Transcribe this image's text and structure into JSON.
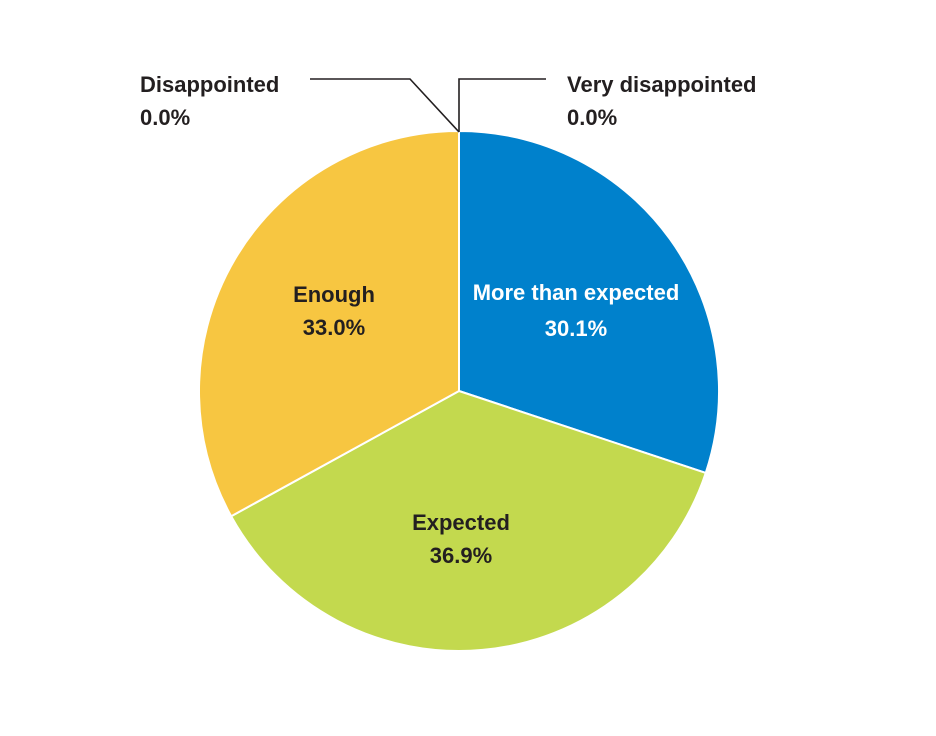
{
  "chart_data": {
    "type": "pie",
    "title": "",
    "start_angle_deg": 0,
    "direction": "clockwise",
    "slices": [
      {
        "name": "More than expected",
        "label": "More than expected",
        "value_label": "30.1%",
        "value": 30.1,
        "color": "#0081cc",
        "text_color": "#ffffff"
      },
      {
        "name": "Expected",
        "label": "Expected",
        "value_label": "36.9%",
        "value": 36.9,
        "color": "#c3d94e",
        "text_color": "#231f20"
      },
      {
        "name": "Enough",
        "label": "Enough",
        "value_label": "33.0%",
        "value": 33.0,
        "color": "#f7c641",
        "text_color": "#231f20"
      },
      {
        "name": "Disappointed",
        "label": "Disappointed",
        "value_label": "0.0%",
        "value": 0.0,
        "color": "#f7c641",
        "text_color": "#231f20",
        "callout": "left"
      },
      {
        "name": "Very disappointed",
        "label": "Very disappointed",
        "value_label": "0.0%",
        "value": 0.0,
        "color": "#0081cc",
        "text_color": "#231f20",
        "callout": "right"
      }
    ]
  }
}
